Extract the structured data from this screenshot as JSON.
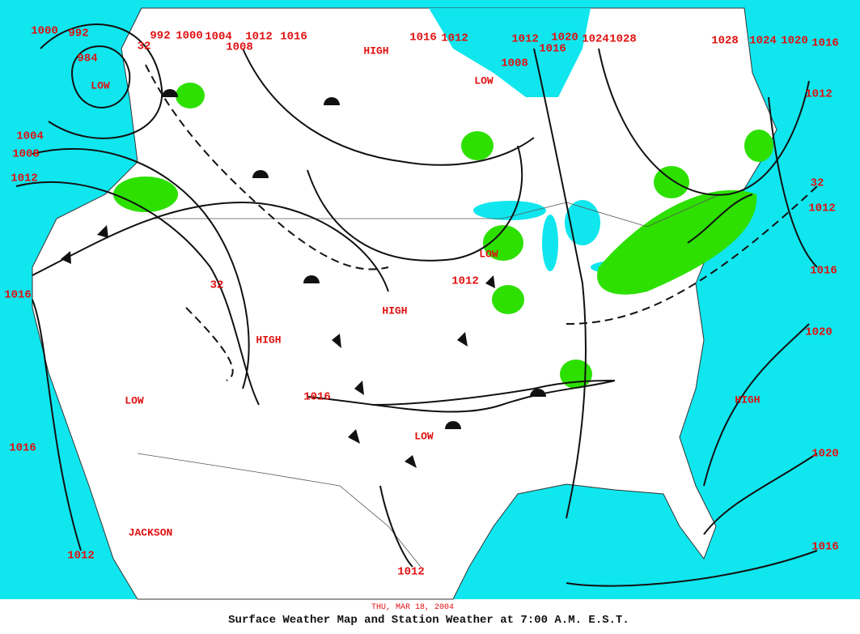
{
  "map": {
    "isobar_labels": [
      "1000",
      "992",
      "984",
      "32",
      "992",
      "1000",
      "1004",
      "1008",
      "1012",
      "1016",
      "1016",
      "1012",
      "1012",
      "1020",
      "1016",
      "1008",
      "1024",
      "1028",
      "1028",
      "1024",
      "1020",
      "1016",
      "1012",
      "32",
      "1012",
      "1016",
      "1020",
      "1020",
      "1016",
      "1004",
      "1008",
      "1012",
      "1016",
      "32",
      "1012",
      "1016",
      "1016",
      "1012",
      "1012"
    ],
    "centers": [
      "LOW",
      "HIGH",
      "LOW",
      "HIGH",
      "HIGH",
      "LOW",
      "LOW",
      "LOW",
      "HIGH"
    ],
    "place_labels": [
      "JACKSON"
    ],
    "footer": {
      "date": "THU, MAR 18, 2004",
      "title": "Surface Weather Map and Station Weather at 7:00 A.M. E.S.T."
    }
  }
}
